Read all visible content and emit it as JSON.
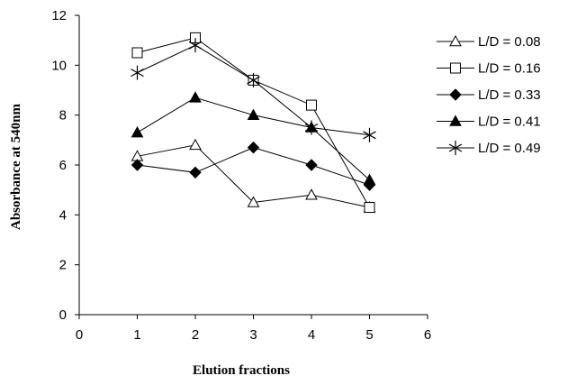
{
  "chart_data": {
    "type": "line",
    "title": "",
    "xlabel": "Elution fractions",
    "ylabel": "Absorbance at 540nm",
    "xlim": [
      0,
      6
    ],
    "ylim": [
      0,
      12
    ],
    "xticks": [
      0,
      1,
      2,
      3,
      4,
      5,
      6
    ],
    "yticks": [
      0,
      2,
      4,
      6,
      8,
      10,
      12
    ],
    "grid": false,
    "legend_position": "right",
    "series": [
      {
        "name": "L/D = 0.08",
        "marker": "triangle-open",
        "color": "#000000",
        "x": [
          1,
          2,
          3,
          4,
          5
        ],
        "y": [
          6.35,
          6.8,
          4.5,
          4.8,
          4.3
        ]
      },
      {
        "name": "L/D = 0.16",
        "marker": "square-open",
        "color": "#000000",
        "x": [
          1,
          2,
          3,
          4,
          5
        ],
        "y": [
          10.5,
          11.1,
          9.4,
          8.4,
          4.3
        ]
      },
      {
        "name": "L/D = 0.33",
        "marker": "diamond-filled",
        "color": "#000000",
        "x": [
          1,
          2,
          3,
          4,
          5
        ],
        "y": [
          6.0,
          5.7,
          6.7,
          6.0,
          5.2
        ]
      },
      {
        "name": "L/D = 0.41",
        "marker": "triangle-filled",
        "color": "#000000",
        "x": [
          1,
          2,
          3,
          4,
          5
        ],
        "y": [
          7.3,
          8.7,
          8.0,
          7.5,
          5.4
        ]
      },
      {
        "name": "L/D = 0.49",
        "marker": "asterisk",
        "color": "#000000",
        "x": [
          1,
          2,
          3,
          4,
          5
        ],
        "y": [
          9.7,
          10.8,
          9.4,
          7.5,
          7.2
        ]
      }
    ]
  }
}
